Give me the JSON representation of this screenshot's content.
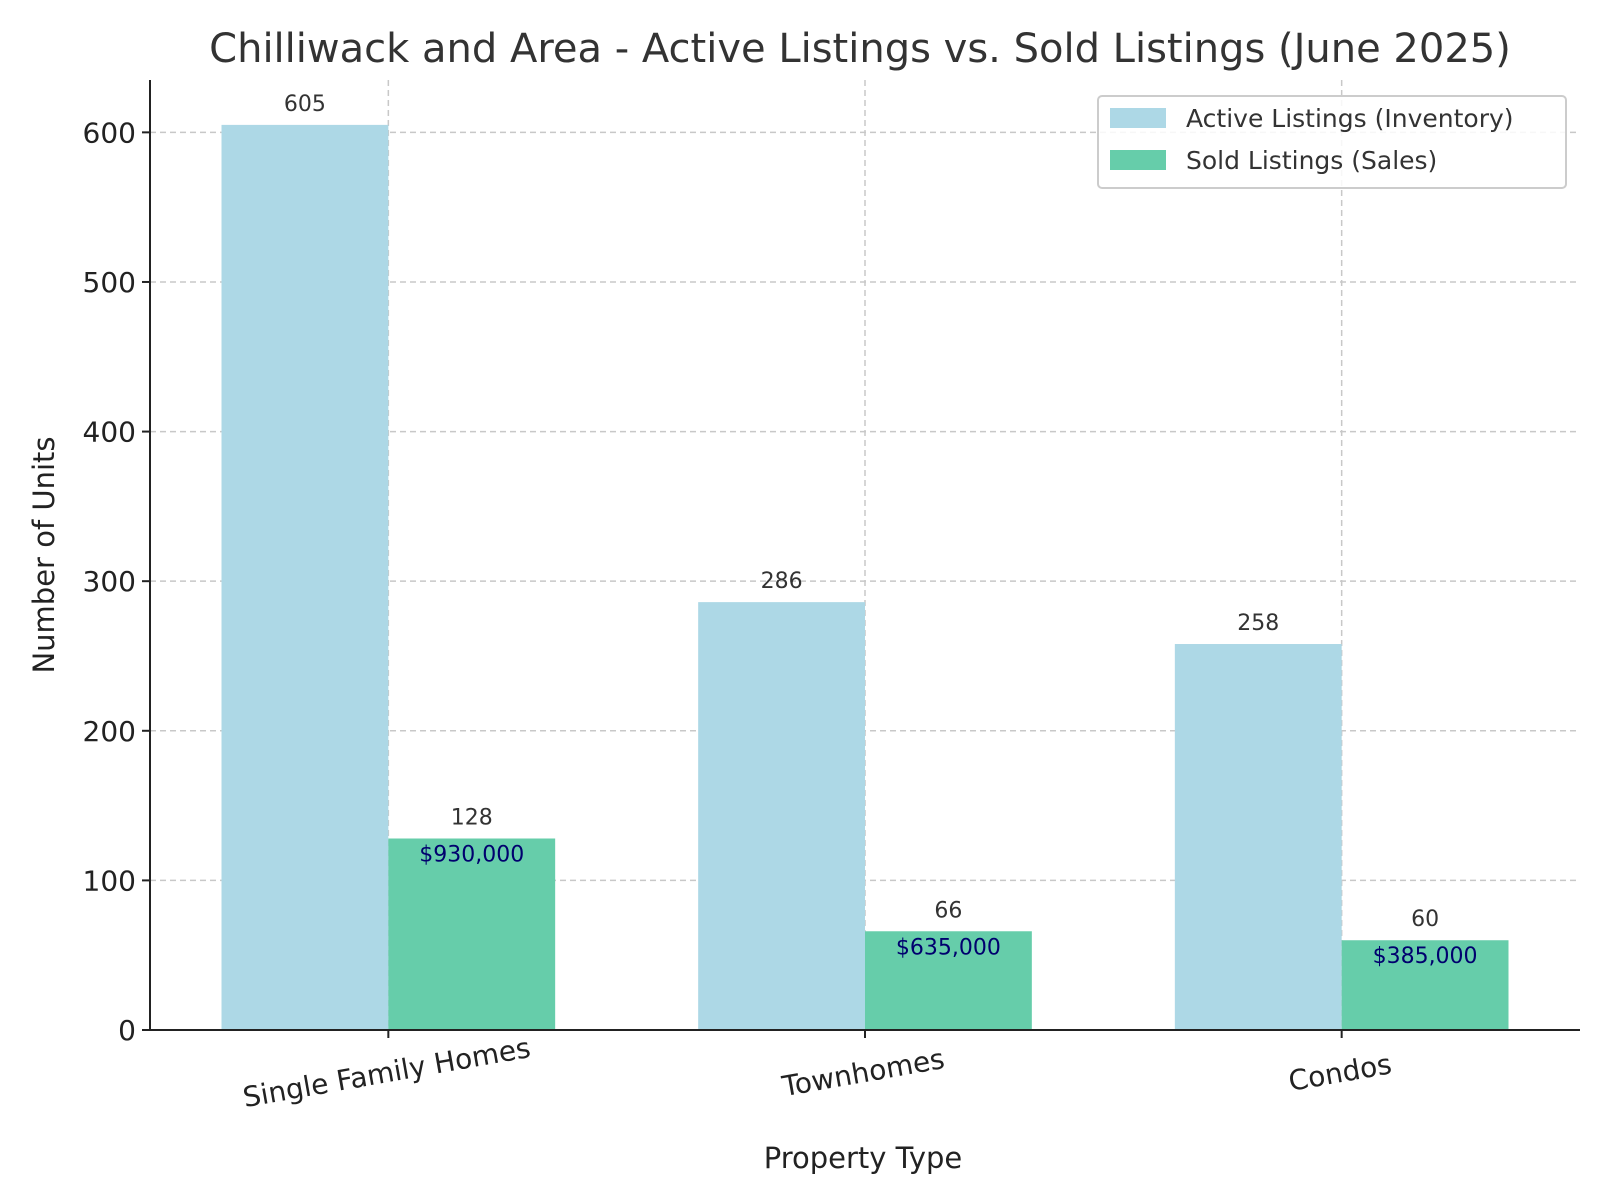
{
  "chart_data": {
    "type": "bar",
    "title": "Chilliwack and Area - Active Listings vs. Sold Listings (June 2025)",
    "xlabel": "Property Type",
    "ylabel": "Number of Units",
    "categories": [
      "Single Family Homes",
      "Townhomes",
      "Condos"
    ],
    "series": [
      {
        "name": "Active Listings (Inventory)",
        "values": [
          605,
          286,
          258
        ],
        "color": "#add8e6"
      },
      {
        "name": "Sold Listings (Sales)",
        "values": [
          128,
          66,
          60
        ],
        "color": "#66cdaa"
      }
    ],
    "price_annotations": [
      "$930,000",
      "$635,000",
      "$385,000"
    ],
    "ylim": [
      0,
      635
    ],
    "yticks": [
      0,
      100,
      200,
      300,
      400,
      500,
      600
    ],
    "grid": true,
    "legend_position": "top-right",
    "price_color": "#00006e",
    "grid_color": "#c8c8c8",
    "axis_color": "#222222"
  }
}
